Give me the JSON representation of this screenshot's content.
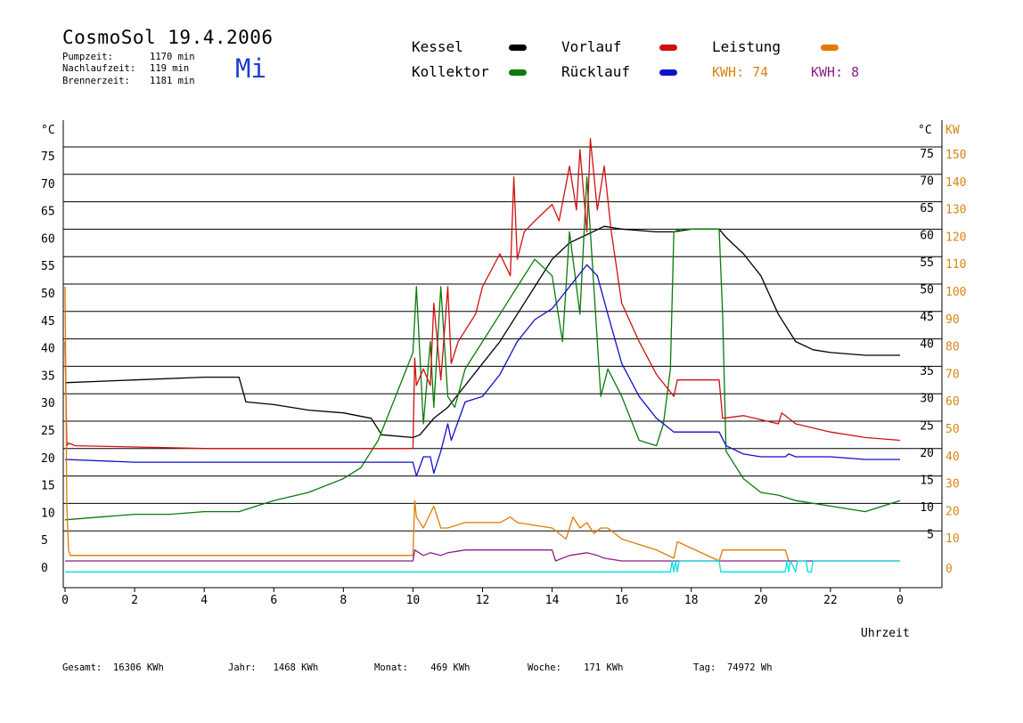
{
  "header": {
    "title": "CosmoSol 19.4.2006",
    "day": "Mi",
    "info": [
      {
        "label": "Pumpzeit:",
        "value": "1170 min"
      },
      {
        "label": "Nachlaufzeit:",
        "value": "119 min"
      },
      {
        "label": "Brennerzeit:",
        "value": "1181 min"
      }
    ]
  },
  "legend": {
    "kessel": "Kessel",
    "kollektor": "Kollektor",
    "vorlauf": "Vorlauf",
    "ruecklauf": "Rücklauf",
    "leistung": "Leistung",
    "kwh1": "KWH: 74",
    "kwh2": "KWH: 8"
  },
  "colors": {
    "kessel": "#000000",
    "kollektor": "#0a7a0a",
    "vorlauf": "#d01010",
    "ruecklauf": "#1010c8",
    "leistung": "#e07b00",
    "kwh1": "#d88410",
    "kwh2": "#8a1f8a",
    "cyan": "#00e0e0",
    "day": "#1a3ec8"
  },
  "footer": [
    {
      "label": "Gesamt:",
      "value": "16306 KWh"
    },
    {
      "label": "Jahr:",
      "value": "1468 KWh"
    },
    {
      "label": "Monat:",
      "value": "469 KWh"
    },
    {
      "label": "Woche:",
      "value": "171 KWh"
    },
    {
      "label": "Tag:",
      "value": "74972 Wh"
    }
  ],
  "chart_data": {
    "type": "line",
    "xlabel": "Uhrzeit",
    "ylabel_left": "°C",
    "ylabel_right_temp": "°C",
    "ylabel_right_power": "KW",
    "xlim": [
      0,
      24
    ],
    "ylim": [
      0,
      80
    ],
    "x_ticks": [
      "0",
      "2",
      "4",
      "6",
      "8",
      "10",
      "12",
      "14",
      "16",
      "18",
      "20",
      "22",
      "0"
    ],
    "y_ticks_left": [
      "0",
      "5",
      "10",
      "15",
      "20",
      "25",
      "30",
      "35",
      "40",
      "45",
      "50",
      "55",
      "60",
      "65",
      "70",
      "75"
    ],
    "y_ticks_right_temp": [
      "5",
      "10",
      "15",
      "20",
      "25",
      "30",
      "35",
      "40",
      "45",
      "50",
      "55",
      "60",
      "65",
      "70",
      "75"
    ],
    "y_ticks_right_power": [
      "0",
      "10",
      "20",
      "30",
      "40",
      "50",
      "60",
      "70",
      "80",
      "90",
      "100",
      "110",
      "120",
      "130",
      "140",
      "150"
    ],
    "grid": true,
    "series": [
      {
        "name": "Kessel",
        "color": "#000000",
        "x": [
          0,
          2,
          4,
          5,
          5.2,
          6,
          7,
          8,
          8.8,
          9.1,
          10,
          10.2,
          10.6,
          11,
          11.5,
          12,
          12.5,
          13,
          13.5,
          14,
          14.5,
          15,
          15.5,
          16,
          17,
          17.5,
          18,
          18.8,
          19,
          19.5,
          20,
          20.5,
          21,
          21.5,
          22,
          23,
          24
        ],
        "y": [
          32.5,
          33,
          33.5,
          33.5,
          29,
          28.5,
          27.5,
          27,
          26,
          23,
          22.5,
          23,
          26,
          28,
          32,
          36,
          40,
          45,
          50,
          55,
          58,
          59.5,
          61,
          60.5,
          60,
          60,
          60.5,
          60.5,
          59,
          56,
          52,
          45,
          40,
          38.5,
          38,
          37.5,
          37.5
        ]
      },
      {
        "name": "Kollektor",
        "color": "#0a7a0a",
        "x": [
          0,
          1,
          2,
          3,
          4,
          5,
          5.5,
          6,
          7,
          8,
          8.5,
          9,
          9.5,
          10,
          10.1,
          10.3,
          10.5,
          10.6,
          10.8,
          11,
          11.2,
          11.5,
          12,
          12.5,
          13,
          13.5,
          14,
          14.3,
          14.5,
          14.8,
          15,
          15.2,
          15.4,
          15.6,
          16,
          16.5,
          17,
          17.2,
          17.4,
          17.5,
          17.7,
          18.8,
          18.9,
          19,
          19.5,
          20,
          20.5,
          21,
          22,
          23,
          24
        ],
        "y": [
          7.5,
          8,
          8.5,
          8.5,
          9,
          9,
          10,
          11,
          12.5,
          15,
          17,
          22,
          30,
          38,
          50,
          25,
          40,
          28,
          50,
          30,
          28,
          35,
          40,
          45,
          50,
          55,
          52,
          40,
          60,
          45,
          70,
          50,
          30,
          35,
          30,
          22,
          21,
          25,
          35,
          60,
          60.5,
          60.5,
          45,
          20,
          15,
          12.5,
          12,
          11,
          10,
          9,
          11
        ]
      },
      {
        "name": "Vorlauf",
        "color": "#d01010",
        "x": [
          0,
          0.05,
          0.1,
          0.3,
          4,
          6,
          8,
          9,
          10,
          10.05,
          10.1,
          10.3,
          10.5,
          10.6,
          10.8,
          11,
          11.1,
          11.3,
          11.8,
          12,
          12.5,
          12.8,
          12.9,
          13,
          13.2,
          13.5,
          14,
          14.2,
          14.5,
          14.7,
          14.8,
          15,
          15.1,
          15.3,
          15.5,
          15.7,
          16,
          16.5,
          17,
          17.5,
          17.6,
          18.8,
          18.9,
          19.5,
          20.5,
          20.6,
          21,
          22,
          23,
          24
        ],
        "y": [
          40,
          21,
          21.5,
          21,
          20.5,
          20.5,
          20.5,
          20.5,
          20.5,
          37,
          32,
          35,
          32,
          47,
          33,
          50,
          36,
          40,
          45,
          50,
          56,
          52,
          70,
          55,
          60,
          62,
          65,
          62,
          72,
          64,
          75,
          60,
          77,
          64,
          72,
          60,
          47,
          40,
          34,
          30,
          33,
          33,
          26,
          26.5,
          25,
          27,
          25,
          23.5,
          22.5,
          22
        ]
      },
      {
        "name": "Rücklauf",
        "color": "#1010c8",
        "x": [
          0,
          2,
          4,
          6,
          8,
          10,
          10.1,
          10.3,
          10.5,
          10.6,
          10.8,
          11,
          11.1,
          11.5,
          12,
          12.5,
          13,
          13.5,
          14,
          14.5,
          15,
          15.3,
          15.6,
          16,
          16.5,
          17,
          17.5,
          18,
          18.8,
          19,
          19.5,
          20,
          20.7,
          20.8,
          21,
          22,
          23,
          24
        ],
        "y": [
          18.5,
          18,
          18,
          18,
          18,
          18,
          15.5,
          19,
          19,
          16,
          20,
          25,
          22,
          29,
          30,
          34,
          40,
          44,
          46,
          50,
          54,
          52,
          45,
          36,
          30,
          26,
          23.5,
          23.5,
          23.5,
          21,
          19.5,
          19,
          19,
          19.5,
          19,
          19,
          18.5,
          18.5
        ]
      },
      {
        "name": "Leistung",
        "color": "#e07b00",
        "x": [
          0,
          0.05,
          0.1,
          0.15,
          2,
          4,
          6,
          8,
          10,
          10.05,
          10.1,
          10.3,
          10.6,
          10.8,
          11,
          11.5,
          12,
          12.5,
          12.8,
          13,
          13.5,
          14,
          14.4,
          14.6,
          14.8,
          15,
          15.2,
          15.4,
          15.6,
          16,
          16.5,
          17,
          17.5,
          17.6,
          18.8,
          18.9,
          20,
          20.7,
          20.8,
          20.9
        ],
        "y": [
          50,
          10,
          2,
          1,
          1,
          1,
          1,
          1,
          1,
          11,
          8,
          6,
          10,
          6,
          6,
          7,
          7,
          7,
          8,
          7,
          6.5,
          6,
          4,
          8,
          6,
          7,
          5,
          6,
          6,
          4,
          3,
          2,
          0.5,
          3.5,
          0,
          2,
          2,
          2,
          0,
          0
        ]
      },
      {
        "name": "KWH purple",
        "color": "#8a1f8a",
        "x": [
          0,
          10,
          10.05,
          10.3,
          10.5,
          10.8,
          11,
          11.5,
          12,
          13,
          14,
          14.1,
          14.5,
          15,
          15.3,
          15.5,
          16,
          24
        ],
        "y": [
          0,
          0,
          2,
          1,
          1.5,
          1,
          1.5,
          2,
          2,
          2,
          2,
          0,
          1,
          1.5,
          1,
          0.5,
          0,
          0
        ]
      },
      {
        "name": "cyan",
        "color": "#00e0e0",
        "x": [
          0,
          17.4,
          17.45,
          17.5,
          17.55,
          17.6,
          17.65,
          18.8,
          18.85,
          20.7,
          20.75,
          20.8,
          20.85,
          21.0,
          21.05,
          21.3,
          21.35,
          21.45,
          21.5,
          24
        ],
        "y": [
          -2,
          -2,
          0,
          -2,
          0,
          -2,
          0,
          0,
          -2,
          -2,
          0,
          -2,
          0,
          -2,
          0,
          0,
          -2,
          -2,
          0,
          0
        ]
      }
    ]
  }
}
